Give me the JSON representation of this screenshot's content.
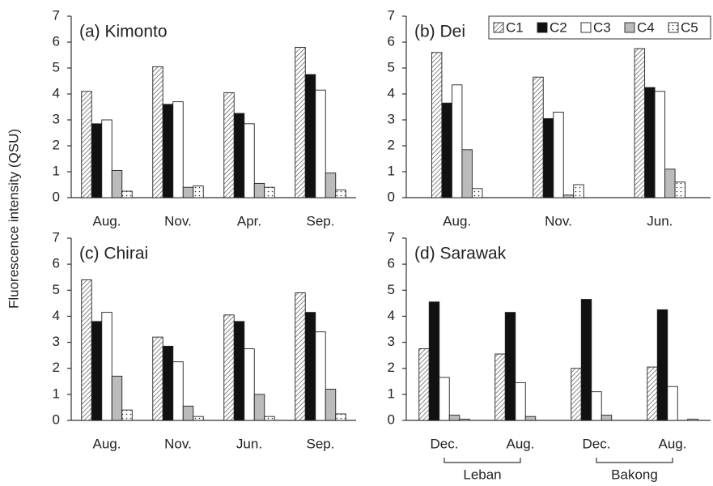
{
  "ylabel": "Fluorescence intensity (QSU)",
  "chart_data": [
    {
      "type": "bar",
      "title": "(a) Kimonto",
      "categories": [
        "Aug.",
        "Nov.",
        "Apr.",
        "Sep."
      ],
      "ylim": [
        0,
        7
      ],
      "yticks": [
        0,
        1,
        2,
        3,
        4,
        5,
        6,
        7
      ],
      "series": [
        {
          "name": "C1",
          "color": "#ffffff",
          "pattern": "diagonal",
          "values": [
            4.1,
            5.05,
            4.05,
            5.8
          ]
        },
        {
          "name": "C2",
          "color": "#111111",
          "pattern": "solid",
          "values": [
            2.85,
            3.6,
            3.25,
            4.75
          ]
        },
        {
          "name": "C3",
          "color": "#ffffff",
          "pattern": "solid",
          "values": [
            3.0,
            3.7,
            2.85,
            4.15
          ]
        },
        {
          "name": "C4",
          "color": "#bbbbbb",
          "pattern": "solid",
          "values": [
            1.05,
            0.4,
            0.55,
            0.95
          ]
        },
        {
          "name": "C5",
          "color": "#ffffff",
          "pattern": "dots",
          "values": [
            0.25,
            0.45,
            0.4,
            0.3
          ]
        }
      ]
    },
    {
      "type": "bar",
      "title": "(b) Dei",
      "categories": [
        "Aug.",
        "Nov.",
        "Jun."
      ],
      "ylim": [
        0,
        7
      ],
      "yticks": [
        0,
        1,
        2,
        3,
        4,
        5,
        6,
        7
      ],
      "legend": "upper right",
      "series": [
        {
          "name": "C1",
          "color": "#ffffff",
          "pattern": "diagonal",
          "values": [
            5.6,
            4.65,
            5.75
          ]
        },
        {
          "name": "C2",
          "color": "#111111",
          "pattern": "solid",
          "values": [
            3.65,
            3.05,
            4.25
          ]
        },
        {
          "name": "C3",
          "color": "#ffffff",
          "pattern": "solid",
          "values": [
            4.35,
            3.3,
            4.1
          ]
        },
        {
          "name": "C4",
          "color": "#bbbbbb",
          "pattern": "solid",
          "values": [
            1.85,
            0.1,
            1.1
          ]
        },
        {
          "name": "C5",
          "color": "#ffffff",
          "pattern": "dots",
          "values": [
            0.35,
            0.5,
            0.6
          ]
        }
      ]
    },
    {
      "type": "bar",
      "title": "(c) Chirai",
      "categories": [
        "Aug.",
        "Nov.",
        "Jun.",
        "Sep."
      ],
      "ylim": [
        0,
        7
      ],
      "yticks": [
        0,
        1,
        2,
        3,
        4,
        5,
        6,
        7
      ],
      "series": [
        {
          "name": "C1",
          "color": "#ffffff",
          "pattern": "diagonal",
          "values": [
            5.4,
            3.2,
            4.05,
            4.9
          ]
        },
        {
          "name": "C2",
          "color": "#111111",
          "pattern": "solid",
          "values": [
            3.8,
            2.85,
            3.8,
            4.15
          ]
        },
        {
          "name": "C3",
          "color": "#ffffff",
          "pattern": "solid",
          "values": [
            4.15,
            2.25,
            2.75,
            3.4
          ]
        },
        {
          "name": "C4",
          "color": "#bbbbbb",
          "pattern": "solid",
          "values": [
            1.7,
            0.55,
            1.0,
            1.2
          ]
        },
        {
          "name": "C5",
          "color": "#ffffff",
          "pattern": "dots",
          "values": [
            0.4,
            0.15,
            0.15,
            0.25
          ]
        }
      ]
    },
    {
      "type": "bar",
      "title": "(d) Sarawak",
      "categories": [
        "Dec.",
        "Aug.",
        "Dec.",
        "Aug."
      ],
      "groups": [
        "Leban",
        "Bakong"
      ],
      "ylim": [
        0,
        7
      ],
      "yticks": [
        0,
        1,
        2,
        3,
        4,
        5,
        6,
        7
      ],
      "series": [
        {
          "name": "C1",
          "color": "#ffffff",
          "pattern": "diagonal",
          "values": [
            2.75,
            2.55,
            2.0,
            2.05
          ]
        },
        {
          "name": "C2",
          "color": "#111111",
          "pattern": "solid",
          "values": [
            4.55,
            4.15,
            4.65,
            4.25
          ]
        },
        {
          "name": "C3",
          "color": "#ffffff",
          "pattern": "solid",
          "values": [
            1.65,
            1.45,
            1.1,
            1.3
          ]
        },
        {
          "name": "C4",
          "color": "#bbbbbb",
          "pattern": "solid",
          "values": [
            0.2,
            0.15,
            0.2,
            0
          ]
        },
        {
          "name": "C5",
          "color": "#ffffff",
          "pattern": "dots",
          "values": [
            0.05,
            0,
            0,
            0.05
          ]
        }
      ]
    }
  ]
}
